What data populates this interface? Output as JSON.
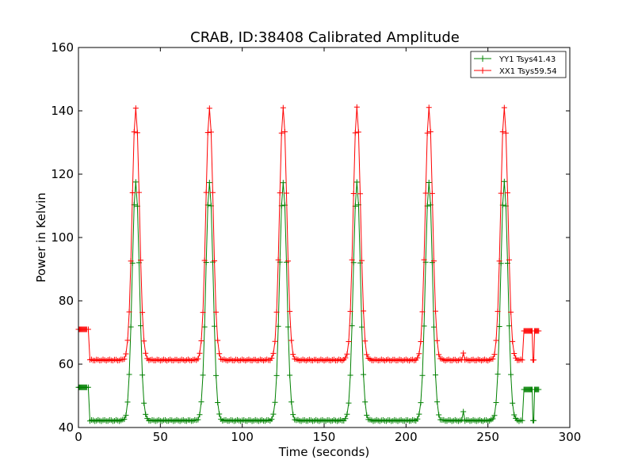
{
  "chart_data": {
    "type": "line",
    "title": "CRAB, ID:38408 Calibrated Amplitude",
    "xlabel": "Time (seconds)",
    "ylabel": "Power in Kelvin",
    "xlim": [
      0,
      300
    ],
    "ylim": [
      40,
      160
    ],
    "xticks": [
      0,
      50,
      100,
      150,
      200,
      250,
      300
    ],
    "yticks": [
      40,
      60,
      80,
      100,
      120,
      140,
      160
    ],
    "grid": false,
    "legend_position": "top-right",
    "marker": "plus",
    "series": [
      {
        "name": "YY1 Tsys41.43",
        "color": "#008000",
        "baseline": 42.2,
        "peak": 117.5,
        "pre_level": 52.7,
        "pre_range": [
          0,
          5
        ],
        "post_level": 52.0,
        "post_range": [
          272,
          281
        ],
        "on_source": [
          7,
          270
        ],
        "peak_times": [
          35,
          80,
          125,
          170,
          214,
          260
        ],
        "spike": {
          "x": 235,
          "y": 45
        }
      },
      {
        "name": "XX1 Tsys59.54",
        "color": "#ff0000",
        "baseline": 61.3,
        "peak": 141.0,
        "pre_level": 71.0,
        "pre_range": [
          0,
          5
        ],
        "post_level": 70.5,
        "post_range": [
          272,
          281
        ],
        "on_source": [
          7,
          270
        ],
        "peak_times": [
          35,
          80,
          125,
          170,
          214,
          260
        ],
        "spike": {
          "x": 235,
          "y": 63.5
        }
      }
    ]
  }
}
